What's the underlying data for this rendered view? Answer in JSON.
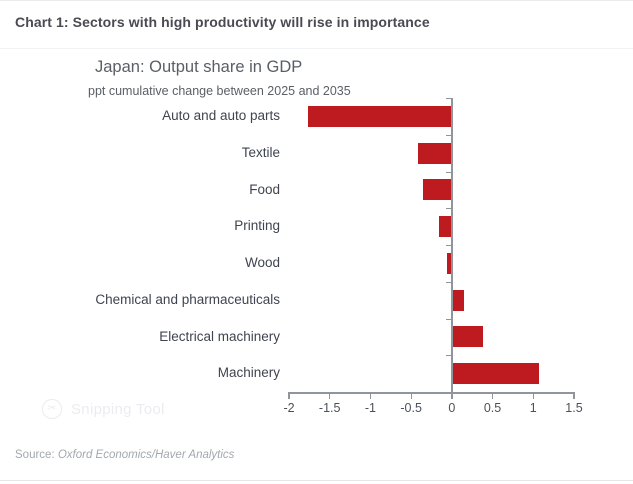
{
  "header": {
    "title": "Chart 1: Sectors with high productivity will rise in importance"
  },
  "chart_data": {
    "type": "bar",
    "orientation": "horizontal",
    "title": "Japan: Output share in GDP",
    "subtitle": "ppt cumulative change between 2025 and 2035",
    "categories": [
      "Auto and auto parts",
      "Textile",
      "Food",
      "Printing",
      "Wood",
      "Chemical and pharmaceuticals",
      "Electrical machinery",
      "Machinery"
    ],
    "values": [
      -1.77,
      -0.42,
      -0.36,
      -0.16,
      -0.06,
      0.14,
      0.37,
      1.06
    ],
    "xlabel": "",
    "ylabel": "",
    "xlim": [
      -2,
      1.5
    ],
    "x_ticks": [
      "-2",
      "-1.5",
      "-1",
      "-0.5",
      "0",
      "0.5",
      "1",
      "1.5"
    ],
    "x_tick_values": [
      -2,
      -1.5,
      -1,
      -0.5,
      0,
      0.5,
      1,
      1.5
    ],
    "bar_color": "#be1b21",
    "axis_color": "#8f959b",
    "grid": false,
    "legend": "none"
  },
  "footer": {
    "source_prefix": "Source: ",
    "source": "Oxford Economics/Haver Analytics"
  },
  "watermark": {
    "text": "Snipping Tool"
  }
}
